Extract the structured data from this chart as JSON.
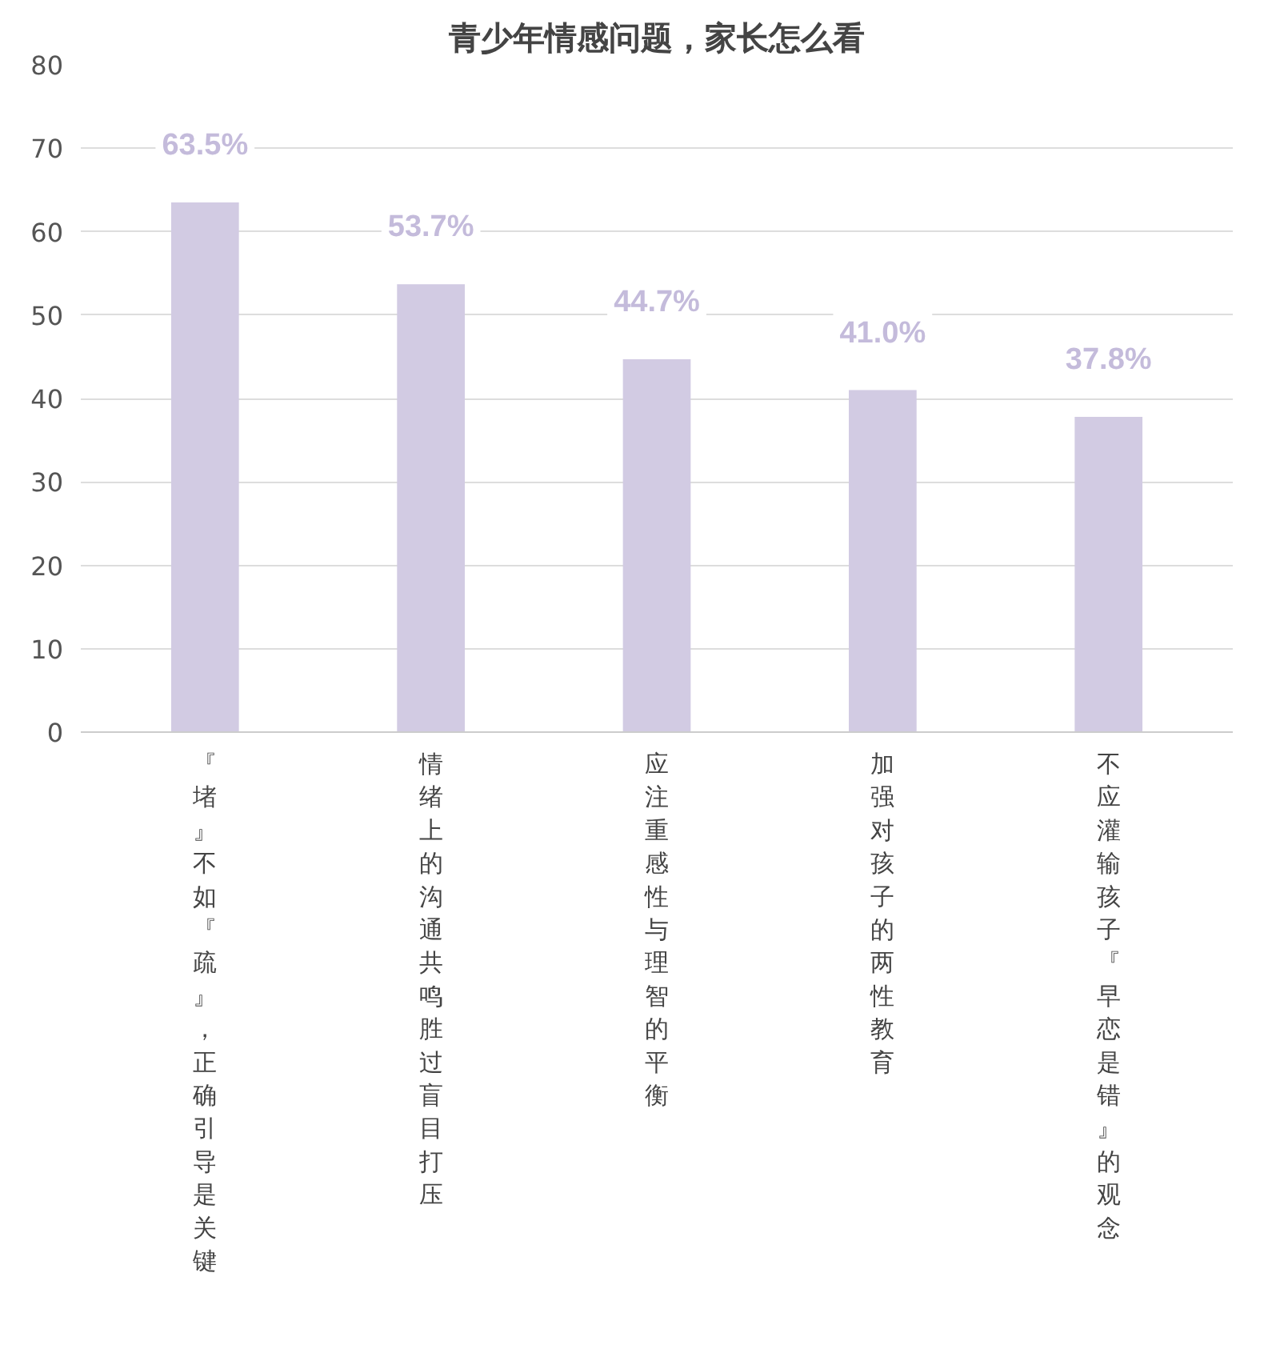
{
  "chart_data": {
    "type": "bar",
    "title": "青少年情感问题，家长怎么看",
    "categories": [
      "『堵』不如『疏』，正确引导是关键",
      "情绪上的沟通共鸣胜过盲目打压",
      "应注重感性与理智的平衡",
      "加强对孩子的两性教育",
      "不应灌输孩子『早恋是错』的观念"
    ],
    "values": [
      63.5,
      53.7,
      44.7,
      41.0,
      37.8
    ],
    "value_labels": [
      "63.5%",
      "53.7%",
      "44.7%",
      "41.0%",
      "37.8%"
    ],
    "color": "#d2cbe3",
    "ylim": [
      0,
      80
    ],
    "yticks": [
      0,
      10,
      20,
      30,
      40,
      50,
      60,
      70,
      80
    ],
    "grid": "y"
  }
}
